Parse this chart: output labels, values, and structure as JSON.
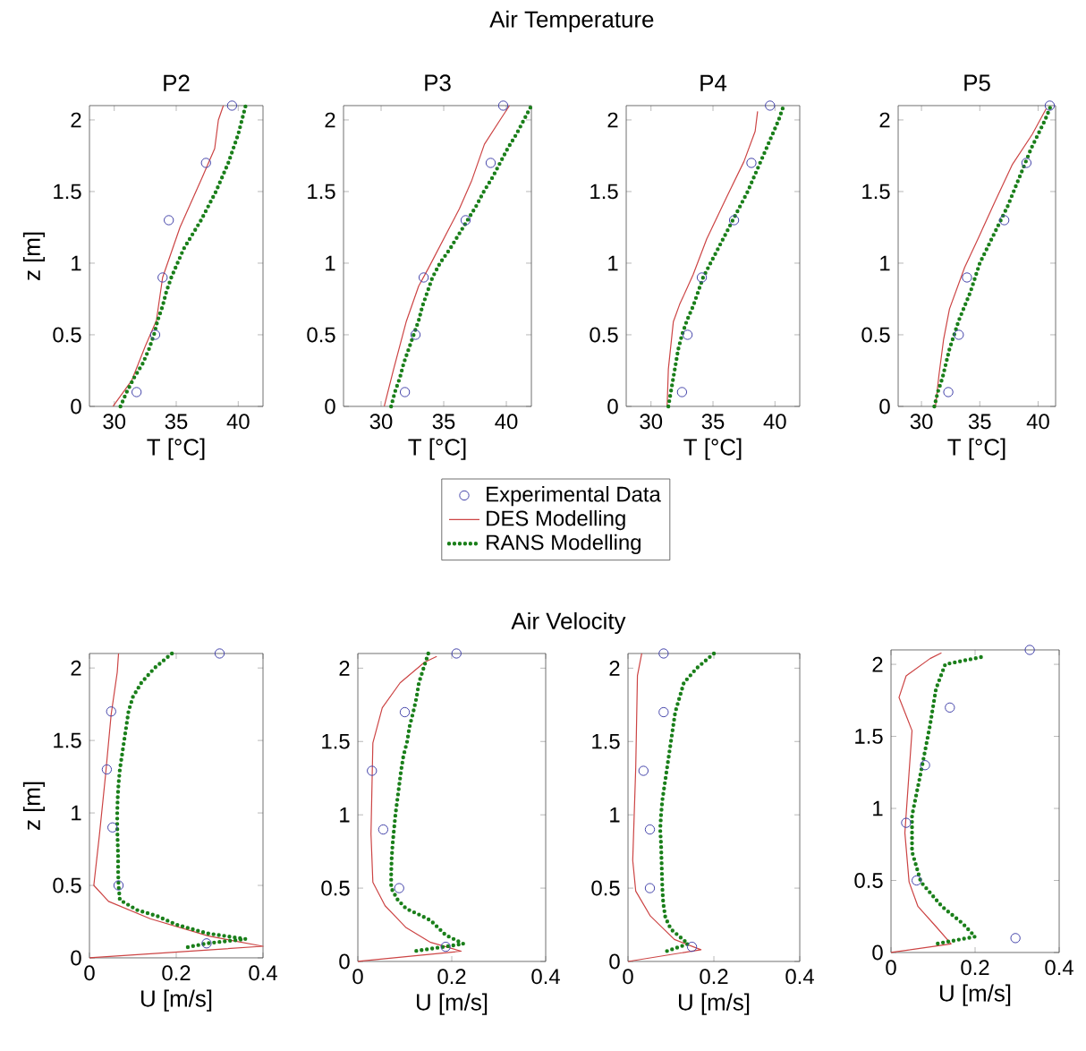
{
  "chart_data": [
    {
      "type": "line",
      "title": "P2",
      "xlabel": "T [°C]",
      "ylabel": "z [m]",
      "annotations": [
        "Air Temperature"
      ],
      "xlim": [
        28,
        42
      ],
      "ylim": [
        0,
        2.1
      ],
      "xticks": [
        30,
        35,
        40
      ],
      "yticks": [
        0,
        0.5,
        1,
        1.5,
        2
      ],
      "series": [
        {
          "type": "scatter",
          "marker": "circle",
          "color": "#4444aa",
          "x": [
            39.5,
            37.4,
            34.4,
            33.9,
            33.3,
            31.8
          ],
          "values": [
            2.1,
            1.7,
            1.3,
            0.9,
            0.5,
            0.1
          ]
        },
        {
          "line_style": "solid",
          "color": "#cc4444",
          "x": [
            29.9,
            31.4,
            32.5,
            33.4,
            33.9,
            35.3,
            37.1,
            38.1,
            38.4,
            38.8
          ],
          "values": [
            0,
            0.18,
            0.42,
            0.6,
            0.9,
            1.25,
            1.6,
            1.8,
            2.0,
            2.1
          ]
        },
        {
          "line_style": "dotted",
          "color": "#1a7f1a",
          "x": [
            30.5,
            31.0,
            31.6,
            32.3,
            32.8,
            33.2,
            33.5,
            33.9,
            34.2,
            34.6,
            35.1,
            35.6,
            36.3,
            37.0,
            37.6,
            38.2,
            38.7,
            39.2,
            39.6,
            40.0,
            40.3,
            40.6
          ],
          "values": [
            0,
            0.1,
            0.2,
            0.3,
            0.4,
            0.5,
            0.6,
            0.7,
            0.8,
            0.9,
            1.0,
            1.1,
            1.2,
            1.3,
            1.4,
            1.5,
            1.6,
            1.7,
            1.8,
            1.9,
            2.0,
            2.1
          ]
        }
      ]
    },
    {
      "type": "line",
      "title": "P3",
      "xlabel": "T [°C]",
      "legend": "bottom",
      "xlim": [
        27,
        42
      ],
      "ylim": [
        0,
        2.1
      ],
      "xticks": [
        30,
        35,
        40
      ],
      "yticks": [
        0,
        0.5,
        1,
        1.5,
        2
      ],
      "series": [
        {
          "name": "Experimental Data",
          "type": "scatter",
          "marker": "circle",
          "color": "#4444aa",
          "x": [
            39.75,
            38.75,
            36.75,
            33.4,
            32.75,
            31.9
          ],
          "values": [
            2.1,
            1.7,
            1.3,
            0.9,
            0.5,
            0.1
          ]
        },
        {
          "name": "DES Modelling",
          "line_style": "solid",
          "color": "#cc4444",
          "x": [
            30.25,
            31.0,
            32.0,
            33.0,
            33.75,
            35.0,
            36.25,
            37.25,
            38.25,
            39.5,
            40.25
          ],
          "values": [
            0,
            0.26,
            0.59,
            0.84,
            0.96,
            1.17,
            1.38,
            1.58,
            1.83,
            2.0,
            2.1
          ]
        },
        {
          "name": "RANS Modelling",
          "line_style": "dotted",
          "color": "#1a7f1a",
          "x": [
            30.8,
            31.1,
            31.5,
            31.8,
            32.2,
            32.6,
            33.0,
            33.3,
            33.7,
            34.1,
            34.7,
            35.5,
            36.2,
            36.9,
            37.6,
            38.2,
            38.9,
            39.5,
            40.1,
            40.8,
            41.4,
            42.0
          ],
          "values": [
            0,
            0.1,
            0.2,
            0.3,
            0.4,
            0.5,
            0.6,
            0.7,
            0.8,
            0.9,
            1.0,
            1.1,
            1.2,
            1.3,
            1.4,
            1.5,
            1.6,
            1.7,
            1.8,
            1.9,
            2.0,
            2.1
          ]
        }
      ]
    },
    {
      "type": "line",
      "title": "P4",
      "xlabel": "T [°C]",
      "xlim": [
        28,
        42
      ],
      "ylim": [
        0,
        2.1
      ],
      "xticks": [
        30,
        35,
        40
      ],
      "yticks": [
        0,
        0.5,
        1,
        1.5,
        2
      ],
      "series": [
        {
          "type": "scatter",
          "marker": "circle",
          "color": "#4444aa",
          "x": [
            39.6,
            38.1,
            36.7,
            34.1,
            32.95,
            32.5
          ],
          "values": [
            2.1,
            1.7,
            1.3,
            0.9,
            0.5,
            0.1
          ]
        },
        {
          "line_style": "solid",
          "color": "#cc4444",
          "x": [
            31.3,
            31.4,
            31.8,
            32.3,
            33.4,
            34.5,
            36.1,
            37.5,
            38.4,
            38.6
          ],
          "values": [
            0,
            0.26,
            0.59,
            0.71,
            0.92,
            1.17,
            1.46,
            1.71,
            1.92,
            2.06
          ]
        },
        {
          "line_style": "dotted",
          "color": "#1a7f1a",
          "x": [
            31.4,
            31.6,
            31.8,
            32.0,
            32.2,
            32.5,
            32.9,
            33.4,
            33.8,
            34.2,
            34.8,
            35.4,
            36.0,
            36.6,
            37.2,
            37.8,
            38.3,
            38.8,
            39.3,
            39.8,
            40.3,
            40.7
          ],
          "values": [
            0,
            0.1,
            0.2,
            0.3,
            0.4,
            0.5,
            0.6,
            0.7,
            0.8,
            0.9,
            1.0,
            1.1,
            1.2,
            1.3,
            1.4,
            1.5,
            1.6,
            1.7,
            1.8,
            1.9,
            2.0,
            2.1
          ]
        }
      ]
    },
    {
      "type": "line",
      "title": "P5",
      "xlabel": "T [°C]",
      "xlim": [
        28,
        41.5
      ],
      "ylim": [
        0,
        2.1
      ],
      "xticks": [
        30,
        35,
        40
      ],
      "yticks": [
        0,
        0.5,
        1,
        1.5,
        2
      ],
      "series": [
        {
          "type": "scatter",
          "marker": "circle",
          "color": "#4444aa",
          "x": [
            41.0,
            39.0,
            37.1,
            33.9,
            33.2,
            32.3
          ],
          "values": [
            2.1,
            1.7,
            1.3,
            0.9,
            0.5,
            0.1
          ]
        },
        {
          "line_style": "solid",
          "color": "#cc4444",
          "x": [
            31.2,
            31.5,
            31.9,
            32.4,
            33.7,
            34.9,
            36.3,
            37.8,
            39.5,
            40.7
          ],
          "values": [
            0,
            0.22,
            0.47,
            0.68,
            0.97,
            1.18,
            1.43,
            1.69,
            1.9,
            2.08
          ]
        },
        {
          "line_style": "dotted",
          "color": "#1a7f1a",
          "x": [
            31.1,
            31.4,
            31.8,
            32.1,
            32.4,
            32.8,
            33.2,
            33.7,
            34.2,
            34.6,
            35.0,
            35.6,
            36.2,
            36.8,
            37.4,
            37.9,
            38.4,
            38.9,
            39.4,
            40.0,
            40.6,
            41.1
          ],
          "values": [
            0,
            0.1,
            0.2,
            0.3,
            0.4,
            0.5,
            0.6,
            0.7,
            0.8,
            0.9,
            1.0,
            1.1,
            1.2,
            1.3,
            1.4,
            1.5,
            1.6,
            1.7,
            1.8,
            1.9,
            2.0,
            2.1
          ]
        }
      ]
    },
    {
      "type": "line",
      "xlabel": "U [m/s]",
      "ylabel": "z [m]",
      "annotations": [
        "Air Velocity"
      ],
      "xlim": [
        0,
        0.4
      ],
      "ylim": [
        0,
        2.1
      ],
      "xticks": [
        0,
        0.2,
        0.4
      ],
      "yticks": [
        0,
        0.5,
        1,
        1.5,
        2
      ],
      "series": [
        {
          "type": "scatter",
          "marker": "circle",
          "color": "#4444aa",
          "x": [
            0.3,
            0.05,
            0.04,
            0.053,
            0.067,
            0.27
          ],
          "values": [
            2.1,
            1.7,
            1.3,
            0.9,
            0.5,
            0.1
          ]
        },
        {
          "line_style": "solid",
          "color": "#cc4444",
          "x": [
            0,
            0.4,
            0.275,
            0.14,
            0.044,
            0.01,
            0.023,
            0.037,
            0.05,
            0.064,
            0.067
          ],
          "values": [
            0,
            0.08,
            0.15,
            0.27,
            0.39,
            0.5,
            0.85,
            1.26,
            1.68,
            1.97,
            2.1
          ]
        },
        {
          "line_style": "dotted",
          "color": "#1a7f1a",
          "x": [
            0.19,
            0.15,
            0.12,
            0.1,
            0.09,
            0.085,
            0.08,
            0.075,
            0.07,
            0.067,
            0.065,
            0.064,
            0.064,
            0.065,
            0.066,
            0.066,
            0.067,
            0.07,
            0.11,
            0.155,
            0.2,
            0.27,
            0.36,
            0.27,
            0.22
          ],
          "values": [
            2.1,
            2.0,
            1.9,
            1.8,
            1.7,
            1.6,
            1.5,
            1.4,
            1.3,
            1.2,
            1.1,
            1.0,
            0.9,
            0.8,
            0.7,
            0.6,
            0.5,
            0.4,
            0.33,
            0.29,
            0.23,
            0.17,
            0.13,
            0.1,
            0.07
          ]
        }
      ]
    },
    {
      "type": "line",
      "xlabel": "U [m/s]",
      "xlim": [
        0,
        0.4
      ],
      "ylim": [
        0,
        2.1
      ],
      "xticks": [
        0,
        0.2,
        0.4
      ],
      "yticks": [
        0,
        0.5,
        1,
        1.5,
        2
      ],
      "series": [
        {
          "type": "scatter",
          "marker": "circle",
          "color": "#4444aa",
          "x": [
            0.21,
            0.1,
            0.03,
            0.054,
            0.088,
            0.187
          ],
          "values": [
            2.1,
            1.7,
            1.3,
            0.9,
            0.5,
            0.1
          ]
        },
        {
          "line_style": "solid",
          "color": "#cc4444",
          "x": [
            0,
            0.22,
            0.155,
            0.103,
            0.058,
            0.032,
            0.028,
            0.032,
            0.052,
            0.09,
            0.142,
            0.168
          ],
          "values": [
            0,
            0.07,
            0.13,
            0.23,
            0.38,
            0.54,
            0.87,
            1.49,
            1.73,
            1.9,
            2.04,
            2.08
          ]
        },
        {
          "line_style": "dotted",
          "color": "#1a7f1a",
          "x": [
            0.15,
            0.14,
            0.13,
            0.125,
            0.118,
            0.11,
            0.105,
            0.097,
            0.092,
            0.088,
            0.08,
            0.077,
            0.074,
            0.072,
            0.071,
            0.071,
            0.085,
            0.103,
            0.13,
            0.155,
            0.187,
            0.225,
            0.12
          ],
          "values": [
            2.1,
            2.0,
            1.9,
            1.8,
            1.7,
            1.6,
            1.5,
            1.4,
            1.3,
            1.2,
            1.0,
            0.9,
            0.8,
            0.7,
            0.6,
            0.5,
            0.42,
            0.36,
            0.32,
            0.28,
            0.18,
            0.12,
            0.07
          ]
        }
      ]
    },
    {
      "type": "line",
      "xlabel": "U [m/s]",
      "xlim": [
        0,
        0.4
      ],
      "ylim": [
        0,
        2.1
      ],
      "xticks": [
        0,
        0.2,
        0.4
      ],
      "yticks": [
        0,
        0.5,
        1,
        1.5,
        2
      ],
      "series": [
        {
          "type": "scatter",
          "marker": "circle",
          "color": "#4444aa",
          "x": [
            0.083,
            0.083,
            0.036,
            0.051,
            0.051,
            0.149
          ],
          "values": [
            2.1,
            1.7,
            1.3,
            0.9,
            0.5,
            0.1
          ]
        },
        {
          "line_style": "solid",
          "color": "#cc4444",
          "x": [
            0,
            0.17,
            0.108,
            0.052,
            0.018,
            0.011,
            0.018,
            0.022,
            0.032
          ],
          "values": [
            0,
            0.08,
            0.15,
            0.31,
            0.48,
            0.69,
            1.32,
            1.95,
            2.1
          ]
        },
        {
          "line_style": "dotted",
          "color": "#1a7f1a",
          "x": [
            0.2,
            0.16,
            0.13,
            0.12,
            0.11,
            0.105,
            0.095,
            0.09,
            0.085,
            0.08,
            0.077,
            0.075,
            0.077,
            0.078,
            0.08,
            0.082,
            0.087,
            0.1,
            0.14,
            0.08
          ],
          "values": [
            2.1,
            2.0,
            1.9,
            1.8,
            1.7,
            1.6,
            1.4,
            1.3,
            1.2,
            1.1,
            1.0,
            0.9,
            0.8,
            0.7,
            0.5,
            0.4,
            0.3,
            0.22,
            0.12,
            0.06
          ]
        }
      ]
    },
    {
      "type": "line",
      "xlabel": "U [m/s]",
      "xlim": [
        0,
        0.4
      ],
      "ylim": [
        0,
        2.1
      ],
      "xticks": [
        0,
        0.2,
        0.4
      ],
      "yticks": [
        0,
        0.5,
        1,
        1.5,
        2
      ],
      "series": [
        {
          "type": "scatter",
          "marker": "circle",
          "color": "#4444aa",
          "x": [
            0.33,
            0.14,
            0.081,
            0.036,
            0.061,
            0.296
          ],
          "values": [
            2.1,
            1.7,
            1.3,
            0.9,
            0.5,
            0.1
          ]
        },
        {
          "line_style": "solid",
          "color": "#cc4444",
          "x": [
            0,
            0.143,
            0.107,
            0.064,
            0.043,
            0.033,
            0.043,
            0.05,
            0.019,
            0.036,
            0.093,
            0.12
          ],
          "values": [
            0,
            0.06,
            0.18,
            0.32,
            0.49,
            0.83,
            1.25,
            1.54,
            1.77,
            1.92,
            2.04,
            2.08
          ]
        },
        {
          "line_style": "dotted",
          "color": "#1a7f1a",
          "x": [
            0.214,
            0.129,
            0.107,
            0.093,
            0.071,
            0.05,
            0.05,
            0.071,
            0.121,
            0.171,
            0.2,
            0.107
          ],
          "values": [
            2.05,
            2.0,
            1.83,
            1.58,
            1.25,
            0.95,
            0.7,
            0.49,
            0.32,
            0.2,
            0.11,
            0.06
          ]
        }
      ]
    }
  ]
}
